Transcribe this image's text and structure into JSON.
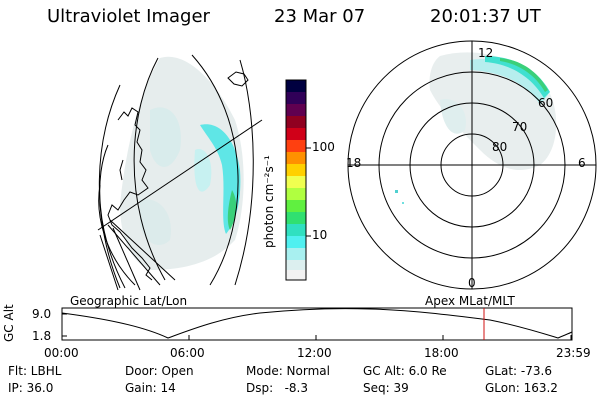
{
  "header": {
    "instrument": "Ultraviolet Imager",
    "date": "23 Mar 07",
    "time": "20:01:37 UT"
  },
  "colorbar": {
    "unit_label": "photon cm⁻²s⁻¹",
    "ticks": [
      "100",
      "10"
    ],
    "colors": [
      "#000040",
      "#200050",
      "#500060",
      "#800020",
      "#b00018",
      "#e00010",
      "#ff5000",
      "#ff9000",
      "#ffd000",
      "#ffff60",
      "#c0ff40",
      "#60f040",
      "#30e070",
      "#30e0c0",
      "#50f0f0",
      "#b0f0f0",
      "#e0f0f0",
      "#f0f0f0"
    ]
  },
  "panels": {
    "left_label": "Geographic Lat/Lon",
    "right_label": "Apex MLat/MLT"
  },
  "polar_labels": {
    "top": "12",
    "bottom": "0",
    "left": "18",
    "right": "6",
    "lat60": "60",
    "lat70": "70",
    "lat80": "80"
  },
  "timeline": {
    "ylabel": "GC Alt",
    "ytick_top": "9.0",
    "ytick_bottom": "1.8",
    "xticks": [
      "00:00",
      "06:00",
      "12:00",
      "18:00",
      "23:59"
    ],
    "marker_time": "20:01:37"
  },
  "info_row1": {
    "filter": "Flt: LBHL",
    "door": "Door: Open",
    "mode": "Mode: Normal",
    "gc_alt": "GC Alt: 6.0 Re",
    "glat": "GLat: -73.6"
  },
  "info_row2": {
    "ip": "IP: 36.0",
    "gain": "Gain: 14",
    "dsp": "Dsp:   -8.3",
    "seq": "Seq: 39",
    "glon": "GLon: 163.2"
  }
}
